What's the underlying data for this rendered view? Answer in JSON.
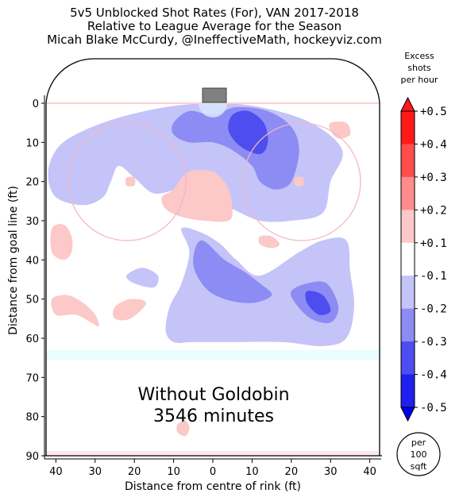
{
  "header": {
    "title_line1": "5v5 Unblocked Shot Rates (For), VAN 2017-2018",
    "title_line2": "Relative to League Average for the Season",
    "title_line3": "Micah Blake McCurdy, @IneffectiveMath, hockeyviz.com"
  },
  "chart_data": {
    "type": "heatmap",
    "xlabel": "Distance from centre of rink (ft)",
    "ylabel": "Distance from goal line (ft)",
    "x_ticks": [
      "40",
      "30",
      "20",
      "10",
      "0",
      "10",
      "20",
      "30",
      "40"
    ],
    "y_ticks": [
      "0",
      "10",
      "20",
      "30",
      "40",
      "50",
      "60",
      "70",
      "80",
      "90"
    ],
    "xlim": [
      -42.5,
      42.5
    ],
    "ylim": [
      0,
      90
    ],
    "annotation_line1": "Without Goldobin",
    "annotation_line2": "3546 minutes",
    "colorbar": {
      "title_line1": "Excess",
      "title_line2": "shots",
      "title_line3": "per hour",
      "levels": [
        "+0.5",
        "+0.4",
        "+0.3",
        "+0.2",
        "+0.1",
        "-0.1",
        "-0.2",
        "-0.3",
        "-0.4",
        "-0.5"
      ],
      "colors": [
        "#ff1a1a",
        "#ff4d4d",
        "#ff8c8c",
        "#fcc8c8",
        "#ffffff",
        "#c4c4f8",
        "#8c8cf4",
        "#4d4df0",
        "#1f1ff0"
      ]
    },
    "unit_badge": [
      "per",
      "100",
      "sqft"
    ],
    "regions": [
      {
        "level": "-0.1",
        "points": [
          [
            -40,
            12
          ],
          [
            -35,
            8
          ],
          [
            -25,
            4
          ],
          [
            -12,
            1
          ],
          [
            0,
            0
          ],
          [
            12,
            1
          ],
          [
            25,
            5
          ],
          [
            33,
            12
          ],
          [
            30,
            20
          ],
          [
            28,
            28
          ],
          [
            20,
            30
          ],
          [
            12,
            30
          ],
          [
            5,
            27
          ],
          [
            -2,
            24
          ],
          [
            -8,
            22
          ],
          [
            -15,
            23
          ],
          [
            -20,
            19
          ],
          [
            -24,
            16
          ],
          [
            -26,
            20
          ],
          [
            -28,
            24
          ],
          [
            -33,
            26
          ],
          [
            -40,
            24
          ],
          [
            -42,
            18
          ]
        ]
      },
      {
        "level": "-0.1",
        "points": [
          [
            -8,
            32
          ],
          [
            -3,
            33
          ],
          [
            2,
            36
          ],
          [
            6,
            40
          ],
          [
            12,
            44
          ],
          [
            22,
            38
          ],
          [
            28,
            35
          ],
          [
            34,
            35
          ],
          [
            35,
            43
          ],
          [
            36,
            52
          ],
          [
            34,
            60
          ],
          [
            28,
            62
          ],
          [
            18,
            61
          ],
          [
            5,
            61
          ],
          [
            -5,
            61
          ],
          [
            -10,
            61
          ],
          [
            -12,
            58
          ],
          [
            -11,
            52
          ],
          [
            -8,
            46
          ],
          [
            -6,
            38
          ]
        ]
      },
      {
        "level": "-0.1",
        "points": [
          [
            -22,
            44
          ],
          [
            -18,
            42
          ],
          [
            -14,
            44
          ],
          [
            -15,
            47
          ],
          [
            -20,
            46
          ]
        ]
      },
      {
        "level": "-0.2",
        "points": [
          [
            -10,
            5
          ],
          [
            -6,
            2
          ],
          [
            0,
            3
          ],
          [
            6,
            1
          ],
          [
            14,
            2
          ],
          [
            20,
            6
          ],
          [
            22,
            12
          ],
          [
            20,
            20
          ],
          [
            16,
            22
          ],
          [
            12,
            20
          ],
          [
            10,
            16
          ],
          [
            5,
            12
          ],
          [
            0,
            10
          ],
          [
            -6,
            10
          ],
          [
            -10,
            8
          ]
        ]
      },
      {
        "level": "-0.2",
        "points": [
          [
            20,
            48
          ],
          [
            24,
            46
          ],
          [
            29,
            46
          ],
          [
            32,
            52
          ],
          [
            30,
            56
          ],
          [
            25,
            55
          ],
          [
            21,
            51
          ]
        ]
      },
      {
        "level": "-0.2",
        "points": [
          [
            -3,
            35
          ],
          [
            3,
            40
          ],
          [
            8,
            43
          ],
          [
            12,
            46
          ],
          [
            15,
            49
          ],
          [
            10,
            51
          ],
          [
            3,
            50
          ],
          [
            -2,
            47
          ],
          [
            -5,
            41
          ]
        ]
      },
      {
        "level": "-0.3",
        "points": [
          [
            5,
            3
          ],
          [
            9,
            2
          ],
          [
            13,
            5
          ],
          [
            14,
            10
          ],
          [
            12,
            13
          ],
          [
            7,
            11
          ],
          [
            4,
            7
          ]
        ]
      },
      {
        "level": "-0.3",
        "points": [
          [
            24,
            48
          ],
          [
            28,
            49
          ],
          [
            30,
            53
          ],
          [
            27,
            54
          ],
          [
            24,
            51
          ]
        ]
      },
      {
        "level": "+0.1",
        "points": [
          [
            -10,
            22
          ],
          [
            -7,
            18
          ],
          [
            -3,
            17
          ],
          [
            1,
            18
          ],
          [
            4,
            22
          ],
          [
            5,
            27
          ],
          [
            4,
            30
          ],
          [
            -2,
            30
          ],
          [
            -8,
            29
          ],
          [
            -12,
            27
          ],
          [
            -13,
            24
          ]
        ]
      },
      {
        "level": "+0.1",
        "points": [
          [
            -41,
            32
          ],
          [
            -38,
            31
          ],
          [
            -36,
            34
          ],
          [
            -36,
            38
          ],
          [
            -38,
            40
          ],
          [
            -41,
            38
          ]
        ]
      },
      {
        "level": "+0.1",
        "points": [
          [
            -41,
            50
          ],
          [
            -37,
            49
          ],
          [
            -33,
            51
          ],
          [
            -30,
            54
          ],
          [
            -29,
            57
          ],
          [
            -31,
            56
          ],
          [
            -35,
            54
          ],
          [
            -40,
            54
          ]
        ]
      },
      {
        "level": "+0.1",
        "points": [
          [
            -25,
            52
          ],
          [
            -21,
            50
          ],
          [
            -17,
            51
          ],
          [
            -21,
            55
          ],
          [
            -25,
            55
          ]
        ]
      },
      {
        "level": "+0.1",
        "points": [
          [
            30,
            5
          ],
          [
            34,
            5
          ],
          [
            35,
            8
          ],
          [
            32,
            9
          ],
          [
            30,
            7
          ]
        ]
      },
      {
        "level": "+0.1",
        "points": [
          [
            12,
            34
          ],
          [
            15,
            34
          ],
          [
            17,
            36
          ],
          [
            15,
            37
          ],
          [
            12,
            36
          ]
        ]
      },
      {
        "level": "+0.1",
        "points": [
          [
            -9,
            82
          ],
          [
            -7,
            81
          ],
          [
            -6,
            83
          ],
          [
            -7,
            85
          ],
          [
            -9,
            84
          ]
        ]
      },
      {
        "level": "+0.1",
        "points": [
          [
            -22,
            19
          ],
          [
            -20,
            19
          ],
          [
            -20,
            21
          ],
          [
            -22,
            21
          ]
        ]
      },
      {
        "level": "+0.1",
        "points": [
          [
            21,
            19
          ],
          [
            23,
            19
          ],
          [
            23,
            21
          ],
          [
            21,
            21
          ]
        ]
      }
    ]
  }
}
